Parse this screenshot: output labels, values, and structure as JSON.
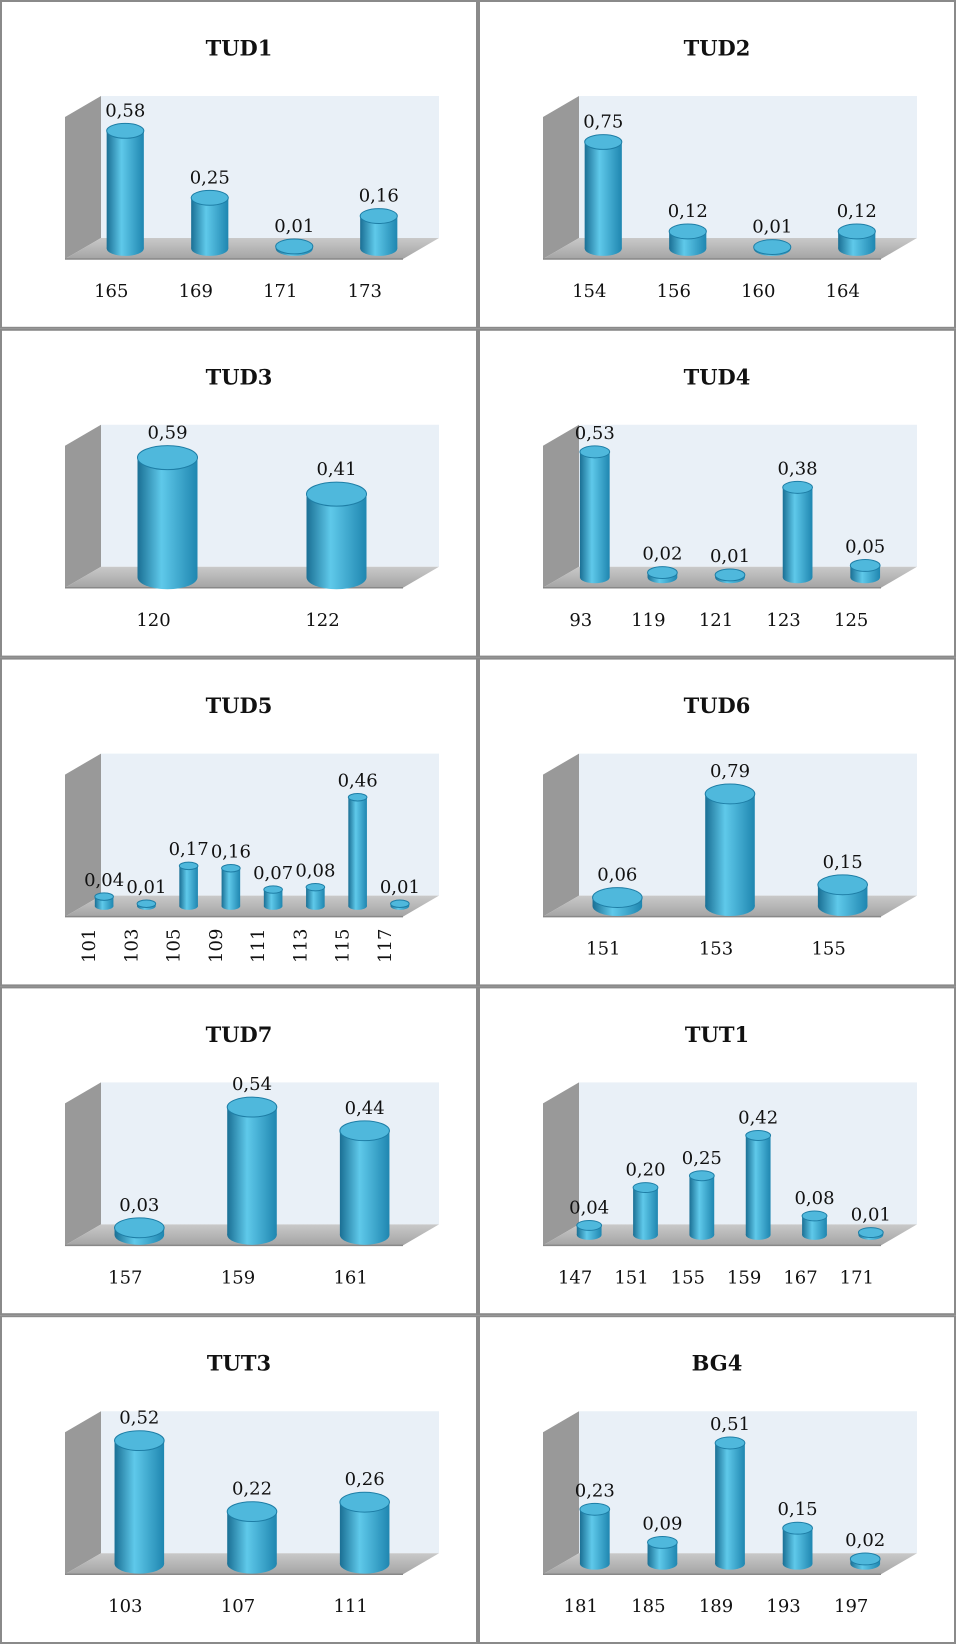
{
  "chart_data": [
    {
      "type": "bar",
      "title": "TUD1",
      "categories": [
        "165",
        "169",
        "171",
        "173"
      ],
      "values": [
        0.58,
        0.25,
        0.01,
        0.16
      ],
      "value_labels": [
        "0,58",
        "0,25",
        "0,01",
        "0,16"
      ],
      "ylim": [
        0,
        0.7
      ],
      "color": "#2a9cc6"
    },
    {
      "type": "bar",
      "title": "TUD2",
      "categories": [
        "154",
        "156",
        "160",
        "164"
      ],
      "values": [
        0.75,
        0.12,
        0.01,
        0.12
      ],
      "value_labels": [
        "0,75",
        "0,12",
        "0,01",
        "0,12"
      ],
      "ylim": [
        0,
        1
      ],
      "color": "#2a9cc6"
    },
    {
      "type": "bar",
      "title": "TUD3",
      "categories": [
        "120",
        "122"
      ],
      "values": [
        0.59,
        0.41
      ],
      "value_labels": [
        "0,59",
        "0,41"
      ],
      "ylim": [
        0,
        0.7
      ],
      "color": "#2a9cc6"
    },
    {
      "type": "bar",
      "title": "TUD4",
      "categories": [
        "93",
        "119",
        "121",
        "123",
        "125"
      ],
      "values": [
        0.53,
        0.02,
        0.01,
        0.38,
        0.05
      ],
      "value_labels": [
        "0,53",
        "0,02",
        "0,01",
        "0,38",
        "0,05"
      ],
      "ylim": [
        0,
        0.6
      ],
      "color": "#2a9cc6"
    },
    {
      "type": "bar",
      "title": "TUD5",
      "categories": [
        "101",
        "103",
        "105",
        "109",
        "111",
        "113",
        "115",
        "117"
      ],
      "values": [
        0.04,
        0.01,
        0.17,
        0.16,
        0.07,
        0.08,
        0.46,
        0.01
      ],
      "value_labels": [
        "0,04",
        "0,01",
        "0,17",
        "0,16",
        "0,07",
        "0,08",
        "0,46",
        "0,01"
      ],
      "ylim": [
        0,
        0.6
      ],
      "rotate_labels": true,
      "color": "#2a9cc6"
    },
    {
      "type": "bar",
      "title": "TUD6",
      "categories": [
        "151",
        "153",
        "155"
      ],
      "values": [
        0.06,
        0.79,
        0.15
      ],
      "value_labels": [
        "0,06",
        "0,79",
        "0,15"
      ],
      "ylim": [
        0,
        1
      ],
      "color": "#2a9cc6"
    },
    {
      "type": "bar",
      "title": "TUD7",
      "categories": [
        "157",
        "159",
        "161"
      ],
      "values": [
        0.03,
        0.54,
        0.44
      ],
      "value_labels": [
        "0,03",
        "0,54",
        "0,44"
      ],
      "ylim": [
        0,
        0.6
      ],
      "color": "#2a9cc6"
    },
    {
      "type": "bar",
      "title": "TUT1",
      "categories": [
        "147",
        "151",
        "155",
        "159",
        "167",
        "171"
      ],
      "values": [
        0.04,
        0.2,
        0.25,
        0.42,
        0.08,
        0.01
      ],
      "value_labels": [
        "0,04",
        "0,20",
        "0,25",
        "0,42",
        "0,08",
        "0,01"
      ],
      "ylim": [
        0,
        0.6
      ],
      "color": "#2a9cc6"
    },
    {
      "type": "bar",
      "title": "TUT3",
      "categories": [
        "103",
        "107",
        "111"
      ],
      "values": [
        0.52,
        0.22,
        0.26
      ],
      "value_labels": [
        "0,52",
        "0,22",
        "0,26"
      ],
      "ylim": [
        0,
        0.6
      ],
      "color": "#2a9cc6"
    },
    {
      "type": "bar",
      "title": "BG4",
      "categories": [
        "181",
        "185",
        "189",
        "193",
        "197"
      ],
      "values": [
        0.23,
        0.09,
        0.51,
        0.15,
        0.02
      ],
      "value_labels": [
        "0,23",
        "0,09",
        "0,51",
        "0,15",
        "0,02"
      ],
      "ylim": [
        0,
        0.6
      ],
      "color": "#2a9cc6"
    }
  ]
}
